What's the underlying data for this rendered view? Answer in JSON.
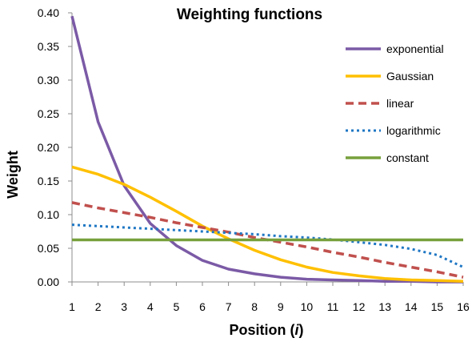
{
  "chart_data": {
    "type": "line",
    "title": "Weighting functions",
    "xlabel_main": "Position (",
    "xlabel_var": "i",
    "xlabel_close": ")",
    "ylabel": "Weight",
    "xlim": [
      1,
      16
    ],
    "ylim": [
      0,
      0.4
    ],
    "x": [
      1,
      2,
      3,
      4,
      5,
      6,
      7,
      8,
      9,
      10,
      11,
      12,
      13,
      14,
      15,
      16
    ],
    "x_tick_labels": [
      "1",
      "2",
      "3",
      "4",
      "5",
      "6",
      "7",
      "8",
      "9",
      "10",
      "11",
      "12",
      "13",
      "14",
      "15",
      "16"
    ],
    "y_ticks": [
      0,
      0.05,
      0.1,
      0.15,
      0.2,
      0.25,
      0.3,
      0.35,
      0.4
    ],
    "y_tick_labels": [
      "0.00",
      "0.05",
      "0.10",
      "0.15",
      "0.20",
      "0.25",
      "0.30",
      "0.35",
      "0.40"
    ],
    "grid": false,
    "legend_position": "top-right",
    "series": [
      {
        "name": "exponential",
        "color": "#7b5aa6",
        "dash": "solid",
        "values": [
          0.395,
          0.238,
          0.143,
          0.087,
          0.054,
          0.032,
          0.019,
          0.012,
          0.007,
          0.004,
          0.003,
          0.002,
          0.001,
          0.001,
          0.0,
          0.0
        ]
      },
      {
        "name": "Gaussian",
        "color": "#ffc000",
        "dash": "solid",
        "values": [
          0.171,
          0.16,
          0.145,
          0.126,
          0.105,
          0.083,
          0.064,
          0.047,
          0.033,
          0.022,
          0.014,
          0.009,
          0.005,
          0.003,
          0.002,
          0.001
        ]
      },
      {
        "name": "linear",
        "color": "#c0504d",
        "dash": "dashed",
        "values": [
          0.118,
          0.11,
          0.103,
          0.096,
          0.088,
          0.081,
          0.074,
          0.066,
          0.059,
          0.052,
          0.044,
          0.037,
          0.029,
          0.022,
          0.015,
          0.007
        ]
      },
      {
        "name": "logarithmic",
        "color": "#1f77c4",
        "dash": "dotted",
        "values": [
          0.085,
          0.083,
          0.081,
          0.079,
          0.077,
          0.075,
          0.073,
          0.071,
          0.068,
          0.066,
          0.063,
          0.059,
          0.055,
          0.049,
          0.04,
          0.022
        ]
      },
      {
        "name": "constant",
        "color": "#77a03c",
        "dash": "solid",
        "values": [
          0.0625,
          0.0625,
          0.0625,
          0.0625,
          0.0625,
          0.0625,
          0.0625,
          0.0625,
          0.0625,
          0.0625,
          0.0625,
          0.0625,
          0.0625,
          0.0625,
          0.0625,
          0.0625
        ]
      }
    ]
  }
}
